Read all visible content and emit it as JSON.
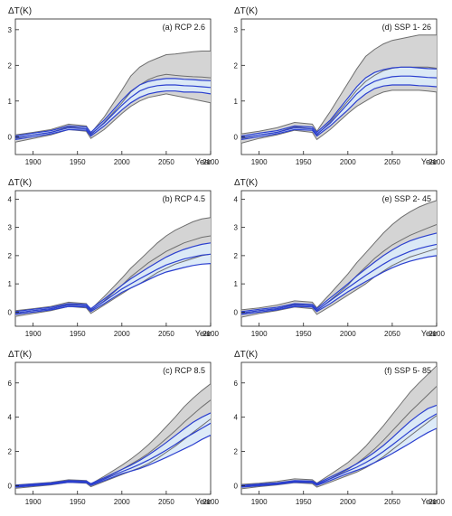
{
  "colors": {
    "gray_band": "#d4d4d4",
    "gray_line": "#6f6f6f",
    "blue_band": "#dbeaf8",
    "blue_line": "#2b3fcf",
    "axis": "#222222"
  },
  "chart_data": [
    {
      "id": "a",
      "type": "line",
      "panel_label": "(a) RCP 2.6",
      "ylabel": "ΔT(K)",
      "xlabel": "Year",
      "xlim": [
        1880,
        2100
      ],
      "ylim": [
        -0.5,
        3.3
      ],
      "xticks": [
        1900,
        1950,
        2000,
        2050,
        2100
      ],
      "yticks": [
        0,
        1,
        2,
        3
      ],
      "gray_series": {
        "x": [
          1880,
          1900,
          1920,
          1940,
          1960,
          1965,
          1980,
          2000,
          2010,
          2020,
          2030,
          2040,
          2050,
          2060,
          2070,
          2080,
          2090,
          2100
        ],
        "lower": [
          -0.15,
          -0.05,
          0.05,
          0.2,
          0.15,
          -0.05,
          0.2,
          0.65,
          0.85,
          1.0,
          1.1,
          1.15,
          1.2,
          1.15,
          1.1,
          1.05,
          1.0,
          0.95
        ],
        "middle": [
          -0.05,
          0.05,
          0.12,
          0.28,
          0.22,
          0.05,
          0.4,
          0.95,
          1.25,
          1.45,
          1.6,
          1.7,
          1.75,
          1.72,
          1.7,
          1.68,
          1.67,
          1.65
        ],
        "upper": [
          0.05,
          0.12,
          0.2,
          0.35,
          0.3,
          0.1,
          0.55,
          1.3,
          1.7,
          1.95,
          2.1,
          2.2,
          2.3,
          2.32,
          2.35,
          2.38,
          2.4,
          2.4
        ]
      },
      "blue_series": {
        "x": [
          1880,
          1900,
          1920,
          1940,
          1960,
          1965,
          1980,
          2000,
          2010,
          2020,
          2030,
          2040,
          2050,
          2060,
          2070,
          2080,
          2090,
          2100
        ],
        "lower": [
          -0.08,
          0.0,
          0.08,
          0.2,
          0.18,
          0.02,
          0.3,
          0.75,
          0.95,
          1.1,
          1.2,
          1.25,
          1.28,
          1.28,
          1.25,
          1.25,
          1.24,
          1.2
        ],
        "middle": [
          -0.03,
          0.05,
          0.12,
          0.25,
          0.22,
          0.07,
          0.38,
          0.88,
          1.1,
          1.28,
          1.38,
          1.43,
          1.45,
          1.45,
          1.43,
          1.42,
          1.4,
          1.38
        ],
        "upper": [
          0.02,
          0.1,
          0.17,
          0.3,
          0.27,
          0.12,
          0.46,
          1.02,
          1.27,
          1.45,
          1.55,
          1.6,
          1.63,
          1.63,
          1.61,
          1.6,
          1.58,
          1.57
        ]
      }
    },
    {
      "id": "d",
      "type": "line",
      "panel_label": "(d) SSP 1- 26",
      "ylabel": "ΔT(K)",
      "xlabel": "Year",
      "xlim": [
        1880,
        2100
      ],
      "ylim": [
        -0.5,
        3.3
      ],
      "xticks": [
        1900,
        1950,
        2000,
        2050,
        2100
      ],
      "yticks": [
        0,
        1,
        2,
        3
      ],
      "gray_series": {
        "x": [
          1880,
          1900,
          1920,
          1940,
          1960,
          1965,
          1980,
          2000,
          2010,
          2020,
          2030,
          2040,
          2050,
          2060,
          2070,
          2080,
          2090,
          2100
        ],
        "lower": [
          -0.18,
          -0.05,
          0.05,
          0.18,
          0.12,
          -0.08,
          0.2,
          0.65,
          0.85,
          1.0,
          1.15,
          1.25,
          1.3,
          1.3,
          1.3,
          1.3,
          1.28,
          1.25
        ],
        "middle": [
          -0.05,
          0.05,
          0.12,
          0.28,
          0.22,
          0.05,
          0.42,
          1.0,
          1.3,
          1.55,
          1.72,
          1.85,
          1.92,
          1.95,
          1.95,
          1.95,
          1.95,
          1.92
        ],
        "upper": [
          0.08,
          0.15,
          0.25,
          0.4,
          0.35,
          0.15,
          0.7,
          1.5,
          1.9,
          2.25,
          2.45,
          2.6,
          2.7,
          2.75,
          2.8,
          2.85,
          2.85,
          2.85
        ]
      },
      "blue_series": {
        "x": [
          1880,
          1900,
          1920,
          1940,
          1960,
          1965,
          1980,
          2000,
          2010,
          2020,
          2030,
          2040,
          2050,
          2060,
          2070,
          2080,
          2090,
          2100
        ],
        "lower": [
          -0.08,
          0.0,
          0.08,
          0.2,
          0.18,
          0.02,
          0.3,
          0.75,
          1.0,
          1.2,
          1.35,
          1.42,
          1.45,
          1.45,
          1.45,
          1.43,
          1.42,
          1.4
        ],
        "middle": [
          -0.03,
          0.05,
          0.12,
          0.25,
          0.22,
          0.07,
          0.38,
          0.92,
          1.2,
          1.42,
          1.55,
          1.63,
          1.68,
          1.7,
          1.7,
          1.68,
          1.66,
          1.65
        ],
        "upper": [
          0.02,
          0.1,
          0.17,
          0.3,
          0.27,
          0.12,
          0.46,
          1.08,
          1.4,
          1.65,
          1.8,
          1.88,
          1.93,
          1.95,
          1.95,
          1.93,
          1.91,
          1.9
        ]
      }
    },
    {
      "id": "b",
      "type": "line",
      "panel_label": "(b) RCP 4.5",
      "ylabel": "ΔT(K)",
      "xlabel": "Year",
      "xlim": [
        1880,
        2100
      ],
      "ylim": [
        -0.5,
        4.3
      ],
      "xticks": [
        1900,
        1950,
        2000,
        2050,
        2100
      ],
      "yticks": [
        0,
        1,
        2,
        3,
        4
      ],
      "gray_series": {
        "x": [
          1880,
          1900,
          1920,
          1940,
          1960,
          1965,
          1980,
          2000,
          2010,
          2020,
          2030,
          2040,
          2050,
          2060,
          2070,
          2080,
          2090,
          2100
        ],
        "lower": [
          -0.15,
          -0.05,
          0.05,
          0.2,
          0.15,
          -0.05,
          0.25,
          0.65,
          0.85,
          1.0,
          1.2,
          1.4,
          1.55,
          1.7,
          1.8,
          1.9,
          2.0,
          2.05
        ],
        "middle": [
          -0.05,
          0.05,
          0.12,
          0.28,
          0.22,
          0.05,
          0.4,
          0.95,
          1.25,
          1.5,
          1.75,
          1.95,
          2.15,
          2.3,
          2.45,
          2.55,
          2.65,
          2.7
        ],
        "upper": [
          0.05,
          0.12,
          0.2,
          0.35,
          0.3,
          0.1,
          0.55,
          1.2,
          1.55,
          1.85,
          2.15,
          2.45,
          2.7,
          2.9,
          3.05,
          3.2,
          3.3,
          3.35
        ]
      },
      "blue_series": {
        "x": [
          1880,
          1900,
          1920,
          1940,
          1960,
          1965,
          1980,
          2000,
          2010,
          2020,
          2030,
          2040,
          2050,
          2060,
          2070,
          2080,
          2090,
          2100
        ],
        "lower": [
          -0.08,
          0.0,
          0.08,
          0.2,
          0.18,
          0.02,
          0.3,
          0.7,
          0.85,
          1.0,
          1.15,
          1.3,
          1.42,
          1.5,
          1.58,
          1.65,
          1.7,
          1.72
        ],
        "middle": [
          -0.03,
          0.05,
          0.12,
          0.25,
          0.22,
          0.07,
          0.38,
          0.82,
          1.0,
          1.18,
          1.35,
          1.52,
          1.67,
          1.78,
          1.88,
          1.95,
          2.02,
          2.05
        ],
        "upper": [
          0.02,
          0.1,
          0.17,
          0.3,
          0.27,
          0.12,
          0.46,
          0.95,
          1.18,
          1.38,
          1.58,
          1.77,
          1.95,
          2.1,
          2.22,
          2.32,
          2.4,
          2.45
        ]
      }
    },
    {
      "id": "e",
      "type": "line",
      "panel_label": "(e) SSP 2- 45",
      "ylabel": "ΔT(K)",
      "xlabel": "Year",
      "xlim": [
        1880,
        2100
      ],
      "ylim": [
        -0.5,
        4.3
      ],
      "xticks": [
        1900,
        1950,
        2000,
        2050,
        2100
      ],
      "yticks": [
        0,
        1,
        2,
        3,
        4
      ],
      "gray_series": {
        "x": [
          1880,
          1900,
          1920,
          1940,
          1960,
          1965,
          1980,
          2000,
          2010,
          2020,
          2030,
          2040,
          2050,
          2060,
          2070,
          2080,
          2090,
          2100
        ],
        "lower": [
          -0.18,
          -0.05,
          0.05,
          0.18,
          0.12,
          -0.08,
          0.2,
          0.6,
          0.8,
          1.0,
          1.25,
          1.45,
          1.65,
          1.8,
          1.95,
          2.05,
          2.15,
          2.25
        ],
        "middle": [
          -0.05,
          0.05,
          0.12,
          0.28,
          0.22,
          0.05,
          0.42,
          0.95,
          1.3,
          1.6,
          1.9,
          2.15,
          2.38,
          2.55,
          2.72,
          2.85,
          2.98,
          3.1
        ],
        "upper": [
          0.08,
          0.15,
          0.25,
          0.4,
          0.35,
          0.15,
          0.65,
          1.35,
          1.75,
          2.1,
          2.45,
          2.8,
          3.1,
          3.35,
          3.55,
          3.72,
          3.85,
          3.95
        ]
      },
      "blue_series": {
        "x": [
          1880,
          1900,
          1920,
          1940,
          1960,
          1965,
          1980,
          2000,
          2010,
          2020,
          2030,
          2040,
          2050,
          2060,
          2070,
          2080,
          2090,
          2100
        ],
        "lower": [
          -0.08,
          0.0,
          0.08,
          0.2,
          0.18,
          0.02,
          0.3,
          0.72,
          0.9,
          1.08,
          1.25,
          1.42,
          1.57,
          1.7,
          1.8,
          1.88,
          1.95,
          2.0
        ],
        "middle": [
          -0.03,
          0.05,
          0.12,
          0.25,
          0.22,
          0.07,
          0.4,
          0.86,
          1.08,
          1.3,
          1.5,
          1.7,
          1.88,
          2.02,
          2.15,
          2.25,
          2.33,
          2.4
        ],
        "upper": [
          0.02,
          0.1,
          0.17,
          0.3,
          0.27,
          0.12,
          0.5,
          1.0,
          1.28,
          1.53,
          1.77,
          2.0,
          2.2,
          2.38,
          2.52,
          2.63,
          2.72,
          2.8
        ]
      }
    },
    {
      "id": "c",
      "type": "line",
      "panel_label": "(c) RCP 8.5",
      "ylabel": "ΔT(K)",
      "xlabel": "Year",
      "xlim": [
        1880,
        2100
      ],
      "ylim": [
        -0.5,
        7.2
      ],
      "xticks": [
        1900,
        1950,
        2000,
        2050,
        2100
      ],
      "yticks": [
        0,
        2,
        4,
        6
      ],
      "gray_series": {
        "x": [
          1880,
          1900,
          1920,
          1940,
          1960,
          1965,
          1980,
          2000,
          2010,
          2020,
          2030,
          2040,
          2050,
          2060,
          2070,
          2080,
          2090,
          2100
        ],
        "lower": [
          -0.15,
          -0.05,
          0.05,
          0.2,
          0.15,
          -0.05,
          0.25,
          0.65,
          0.85,
          1.05,
          1.3,
          1.6,
          1.95,
          2.3,
          2.7,
          3.1,
          3.5,
          3.9
        ],
        "middle": [
          -0.05,
          0.05,
          0.12,
          0.28,
          0.22,
          0.05,
          0.4,
          0.95,
          1.25,
          1.55,
          1.9,
          2.3,
          2.75,
          3.2,
          3.7,
          4.15,
          4.6,
          5.0
        ],
        "upper": [
          0.05,
          0.12,
          0.2,
          0.35,
          0.3,
          0.1,
          0.55,
          1.2,
          1.55,
          1.95,
          2.4,
          2.9,
          3.45,
          4.0,
          4.6,
          5.1,
          5.55,
          5.95
        ]
      },
      "blue_series": {
        "x": [
          1880,
          1900,
          1920,
          1940,
          1960,
          1965,
          1980,
          2000,
          2010,
          2020,
          2030,
          2040,
          2050,
          2060,
          2070,
          2080,
          2090,
          2100
        ],
        "lower": [
          -0.08,
          0.0,
          0.08,
          0.2,
          0.18,
          0.02,
          0.3,
          0.7,
          0.85,
          1.0,
          1.2,
          1.42,
          1.65,
          1.9,
          2.15,
          2.4,
          2.7,
          2.95
        ],
        "middle": [
          -0.03,
          0.05,
          0.12,
          0.25,
          0.22,
          0.07,
          0.38,
          0.82,
          1.02,
          1.25,
          1.5,
          1.78,
          2.08,
          2.4,
          2.75,
          3.05,
          3.35,
          3.65
        ],
        "upper": [
          0.02,
          0.1,
          0.17,
          0.3,
          0.27,
          0.12,
          0.46,
          0.95,
          1.2,
          1.48,
          1.8,
          2.15,
          2.52,
          2.92,
          3.32,
          3.7,
          4.0,
          4.25
        ]
      }
    },
    {
      "id": "f",
      "type": "line",
      "panel_label": "(f) SSP 5- 85",
      "ylabel": "ΔT(K)",
      "xlabel": "Year",
      "xlim": [
        1880,
        2100
      ],
      "ylim": [
        -0.5,
        7.2
      ],
      "xticks": [
        1900,
        1950,
        2000,
        2050,
        2100
      ],
      "yticks": [
        0,
        2,
        4,
        6
      ],
      "gray_series": {
        "x": [
          1880,
          1900,
          1920,
          1940,
          1960,
          1965,
          1980,
          2000,
          2010,
          2020,
          2030,
          2040,
          2050,
          2060,
          2070,
          2080,
          2090,
          2100
        ],
        "lower": [
          -0.18,
          -0.05,
          0.05,
          0.18,
          0.12,
          -0.08,
          0.2,
          0.6,
          0.8,
          1.05,
          1.35,
          1.7,
          2.1,
          2.5,
          2.9,
          3.3,
          3.7,
          4.1
        ],
        "middle": [
          -0.05,
          0.05,
          0.12,
          0.28,
          0.22,
          0.05,
          0.42,
          0.95,
          1.3,
          1.7,
          2.15,
          2.65,
          3.2,
          3.75,
          4.3,
          4.8,
          5.3,
          5.8
        ],
        "upper": [
          0.08,
          0.15,
          0.25,
          0.4,
          0.35,
          0.15,
          0.65,
          1.35,
          1.8,
          2.3,
          2.9,
          3.5,
          4.15,
          4.8,
          5.45,
          6.0,
          6.5,
          7.0
        ]
      },
      "blue_series": {
        "x": [
          1880,
          1900,
          1920,
          1940,
          1960,
          1965,
          1980,
          2000,
          2010,
          2020,
          2030,
          2040,
          2050,
          2060,
          2070,
          2080,
          2090,
          2100
        ],
        "lower": [
          -0.08,
          0.0,
          0.08,
          0.2,
          0.18,
          0.02,
          0.3,
          0.72,
          0.9,
          1.1,
          1.35,
          1.6,
          1.88,
          2.18,
          2.48,
          2.8,
          3.1,
          3.35
        ],
        "middle": [
          -0.03,
          0.05,
          0.12,
          0.25,
          0.22,
          0.07,
          0.4,
          0.86,
          1.08,
          1.35,
          1.65,
          2.0,
          2.38,
          2.78,
          3.18,
          3.55,
          3.9,
          4.2
        ],
        "upper": [
          0.02,
          0.1,
          0.17,
          0.3,
          0.27,
          0.12,
          0.5,
          1.0,
          1.28,
          1.6,
          1.95,
          2.35,
          2.8,
          3.28,
          3.75,
          4.15,
          4.5,
          4.7
        ]
      }
    }
  ]
}
